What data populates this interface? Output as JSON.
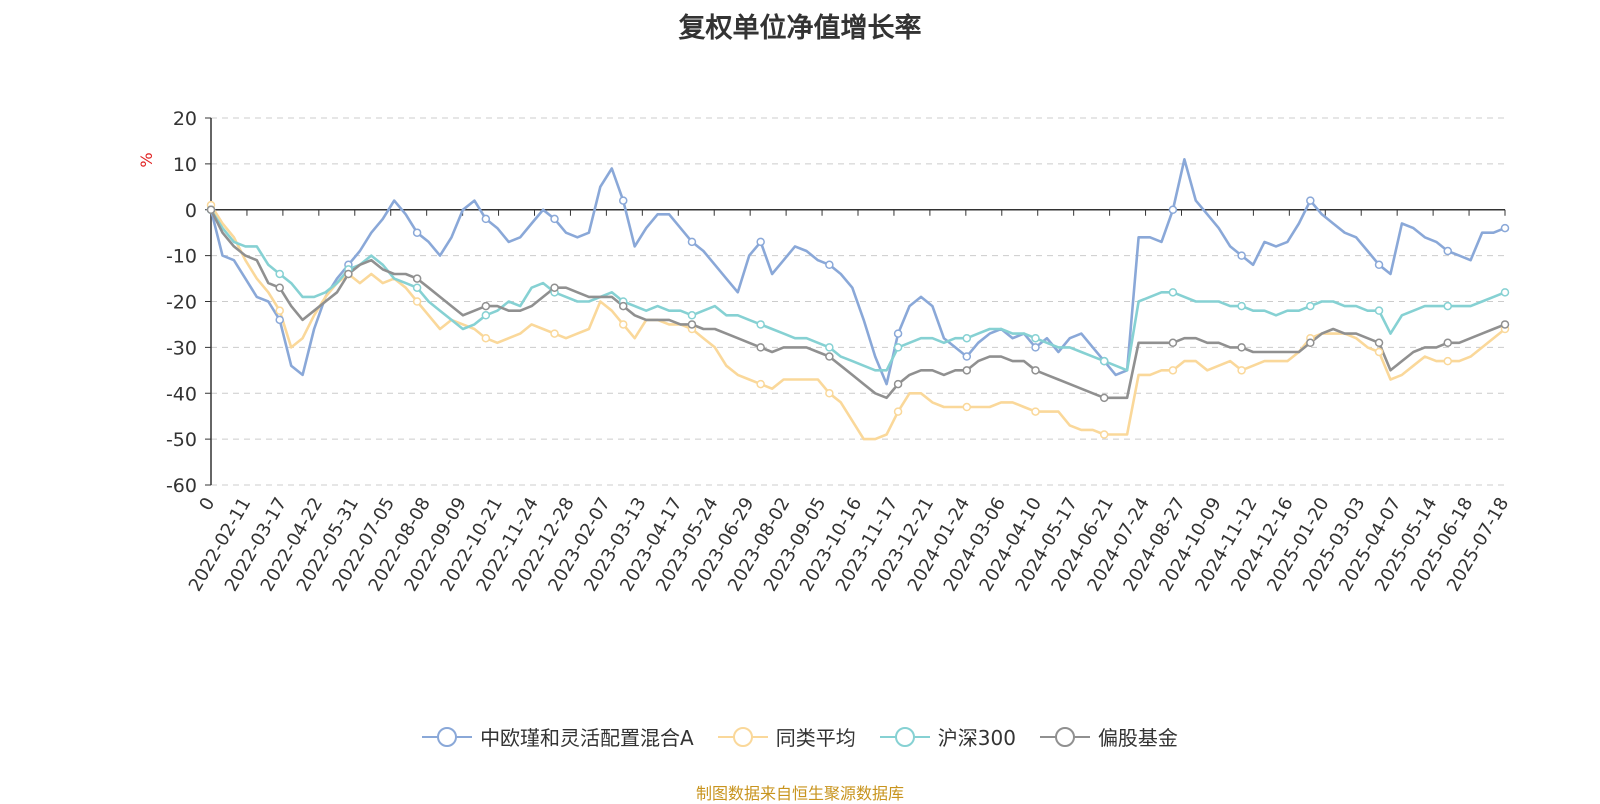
{
  "chart_data": {
    "type": "line",
    "title": "复权单位净值增长率",
    "ylabel": "%",
    "ylim": [
      -60,
      20
    ],
    "yticks": [
      20,
      10,
      0,
      -10,
      -20,
      -30,
      -40,
      -50,
      -60
    ],
    "x_tick_labels": [
      "0",
      "2022-02-11",
      "2022-03-17",
      "2022-04-22",
      "2022-05-31",
      "2022-07-05",
      "2022-08-08",
      "2022-09-09",
      "2022-10-21",
      "2022-11-24",
      "2022-12-28",
      "2023-02-07",
      "2023-03-13",
      "2023-04-17",
      "2023-05-24",
      "2023-06-29",
      "2023-08-02",
      "2023-09-05",
      "2023-10-16",
      "2023-11-17",
      "2023-12-21",
      "2024-01-24",
      "2024-03-06",
      "2024-04-10",
      "2024-05-17",
      "2024-06-21",
      "2024-07-24",
      "2024-08-27",
      "2024-10-09",
      "2024-11-12",
      "2024-12-16",
      "2025-01-20",
      "2025-03-03",
      "2025-04-07",
      "2025-05-14",
      "2025-06-18",
      "2025-07-18"
    ],
    "grid": "horizontal-dashed",
    "legend_position": "bottom",
    "series": [
      {
        "name": "中欧瑾和灵活配置混合A",
        "color": "#8aa8d8",
        "values": [
          0,
          -10,
          -11,
          -15,
          -19,
          -20,
          -24,
          -34,
          -36,
          -26,
          -19,
          -15,
          -12,
          -9,
          -5,
          -2,
          2,
          -1,
          -5,
          -7,
          -10,
          -6,
          0,
          2,
          -2,
          -4,
          -7,
          -6,
          -3,
          0,
          -2,
          -5,
          -6,
          -5,
          5,
          9,
          2,
          -8,
          -4,
          -1,
          -1,
          -4,
          -7,
          -9,
          -12,
          -15,
          -18,
          -10,
          -7,
          -14,
          -11,
          -8,
          -9,
          -11,
          -12,
          -14,
          -17,
          -24,
          -32,
          -38,
          -27,
          -21,
          -19,
          -21,
          -28,
          -30,
          -32,
          -29,
          -27,
          -26,
          -28,
          -27,
          -30,
          -28,
          -31,
          -28,
          -27,
          -30,
          -33,
          -36,
          -35,
          -6,
          -6,
          -7,
          0,
          11,
          2,
          -1,
          -4,
          -8,
          -10,
          -12,
          -7,
          -8,
          -7,
          -3,
          2,
          -1,
          -3,
          -5,
          -6,
          -9,
          -12,
          -14,
          -3,
          -4,
          -6,
          -7,
          -9,
          -10,
          -11,
          -5,
          -5,
          -4
        ]
      },
      {
        "name": "同类平均",
        "color": "#fad89a",
        "values": [
          1,
          -3,
          -6,
          -11,
          -15,
          -18,
          -22,
          -30,
          -28,
          -23,
          -19,
          -16,
          -14,
          -16,
          -14,
          -16,
          -15,
          -17,
          -20,
          -23,
          -26,
          -24,
          -25,
          -26,
          -28,
          -29,
          -28,
          -27,
          -25,
          -26,
          -27,
          -28,
          -27,
          -26,
          -20,
          -22,
          -25,
          -28,
          -24,
          -24,
          -25,
          -25,
          -26,
          -28,
          -30,
          -34,
          -36,
          -37,
          -38,
          -39,
          -37,
          -37,
          -37,
          -37,
          -40,
          -42,
          -46,
          -50,
          -50,
          -49,
          -44,
          -40,
          -40,
          -42,
          -43,
          -43,
          -43,
          -43,
          -43,
          -42,
          -42,
          -43,
          -44,
          -44,
          -44,
          -47,
          -48,
          -48,
          -49,
          -49,
          -49,
          -36,
          -36,
          -35,
          -35,
          -33,
          -33,
          -35,
          -34,
          -33,
          -35,
          -34,
          -33,
          -33,
          -33,
          -31,
          -28,
          -27,
          -27,
          -27,
          -28,
          -30,
          -31,
          -37,
          -36,
          -34,
          -32,
          -33,
          -33,
          -33,
          -32,
          -30,
          -28,
          -26
        ]
      },
      {
        "name": "沪深300",
        "color": "#86d1d3",
        "values": [
          0,
          -4,
          -7,
          -8,
          -8,
          -12,
          -14,
          -16,
          -19,
          -19,
          -18,
          -16,
          -13,
          -12,
          -10,
          -12,
          -15,
          -16,
          -17,
          -20,
          -22,
          -24,
          -26,
          -25,
          -23,
          -22,
          -20,
          -21,
          -17,
          -16,
          -18,
          -19,
          -20,
          -20,
          -19,
          -18,
          -20,
          -21,
          -22,
          -21,
          -22,
          -22,
          -23,
          -22,
          -21,
          -23,
          -23,
          -24,
          -25,
          -26,
          -27,
          -28,
          -28,
          -29,
          -30,
          -32,
          -33,
          -34,
          -35,
          -35,
          -30,
          -29,
          -28,
          -28,
          -29,
          -28,
          -28,
          -27,
          -26,
          -26,
          -27,
          -27,
          -28,
          -29,
          -30,
          -30,
          -31,
          -32,
          -33,
          -34,
          -35,
          -20,
          -19,
          -18,
          -18,
          -19,
          -20,
          -20,
          -20,
          -21,
          -21,
          -22,
          -22,
          -23,
          -22,
          -22,
          -21,
          -20,
          -20,
          -21,
          -21,
          -22,
          -22,
          -27,
          -23,
          -22,
          -21,
          -21,
          -21,
          -21,
          -21,
          -20,
          -19,
          -18
        ]
      },
      {
        "name": "偏股基金",
        "color": "#909090",
        "values": [
          0,
          -5,
          -8,
          -10,
          -11,
          -16,
          -17,
          -21,
          -24,
          -22,
          -20,
          -18,
          -14,
          -12,
          -11,
          -13,
          -14,
          -14,
          -15,
          -17,
          -19,
          -21,
          -23,
          -22,
          -21,
          -21,
          -22,
          -22,
          -21,
          -19,
          -17,
          -17,
          -18,
          -19,
          -19,
          -19,
          -21,
          -23,
          -24,
          -24,
          -24,
          -25,
          -25,
          -26,
          -26,
          -27,
          -28,
          -29,
          -30,
          -31,
          -30,
          -30,
          -30,
          -31,
          -32,
          -34,
          -36,
          -38,
          -40,
          -41,
          -38,
          -36,
          -35,
          -35,
          -36,
          -35,
          -35,
          -33,
          -32,
          -32,
          -33,
          -33,
          -35,
          -36,
          -37,
          -38,
          -39,
          -40,
          -41,
          -41,
          -41,
          -29,
          -29,
          -29,
          -29,
          -28,
          -28,
          -29,
          -29,
          -30,
          -30,
          -31,
          -31,
          -31,
          -31,
          -31,
          -29,
          -27,
          -26,
          -27,
          -27,
          -28,
          -29,
          -35,
          -33,
          -31,
          -30,
          -30,
          -29,
          -29,
          -28,
          -27,
          -26,
          -25
        ]
      }
    ]
  },
  "source_text": "制图数据来自恒生聚源数据库",
  "source_color": "#c8941e",
  "ylabel_color": "#e02020"
}
